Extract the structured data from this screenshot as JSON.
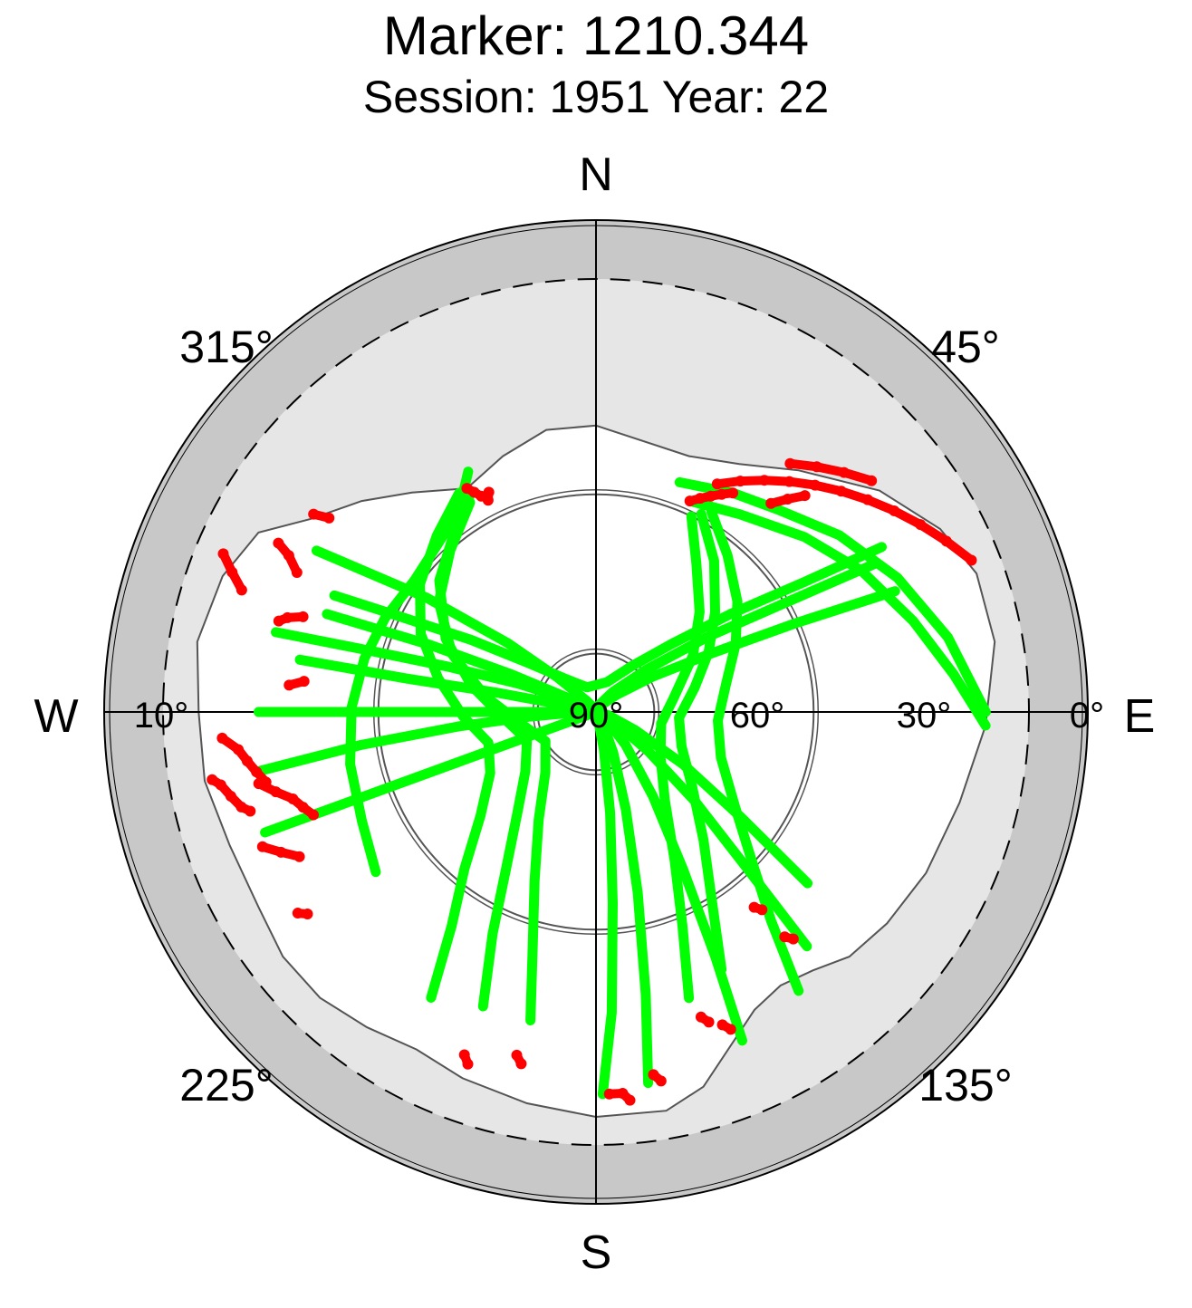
{
  "chart_data": {
    "type": "scatter",
    "title": "Marker: 1210.344",
    "subtitle": "Session: 1951 Year: 22",
    "projection": "polar skyplot",
    "compass": {
      "north": "N",
      "east": "E",
      "south": "S",
      "west": "W"
    },
    "azimuth_labels": [
      {
        "azimuth": 45,
        "text": "45°"
      },
      {
        "azimuth": 135,
        "text": "135°"
      },
      {
        "azimuth": 225,
        "text": "225°"
      },
      {
        "azimuth": 315,
        "text": "315°"
      }
    ],
    "elevation_labels": [
      {
        "elevation": 90,
        "text": "90°"
      },
      {
        "elevation": 60,
        "text": "60°"
      },
      {
        "elevation": 30,
        "text": "30°"
      },
      {
        "elevation": 10,
        "text": "10°"
      },
      {
        "elevation": 0,
        "text": "0°"
      }
    ],
    "legend": "none",
    "colors": {
      "observed": "#00ff00",
      "flagged": "#ff0000",
      "mask_outer": "#c8c8c8",
      "mask_inner": "#e6e6e6"
    },
    "series": [
      {
        "color": "#00ff00",
        "tracks": [
          [
            [
              22,
              332
            ],
            [
              26,
              326
            ],
            [
              28,
              317
            ],
            [
              29,
              306
            ],
            [
              28,
              294
            ],
            [
              27,
              283
            ],
            [
              26,
              271
            ],
            [
              25,
              258
            ],
            [
              24,
              245
            ],
            [
              22,
              234
            ]
          ],
          [
            [
              15,
              300
            ],
            [
              32,
              304
            ],
            [
              48,
              308
            ],
            [
              62,
              312
            ],
            [
              75,
              320
            ],
            [
              84,
              345
            ],
            [
              80,
              30
            ],
            [
              70,
              50
            ],
            [
              58,
              58
            ],
            [
              45,
              63
            ],
            [
              30,
              66
            ],
            [
              15,
              68
            ]
          ],
          [
            [
              20,
              290
            ],
            [
              36,
              292
            ],
            [
              52,
              294
            ],
            [
              66,
              296
            ],
            [
              78,
              304
            ],
            [
              86,
              330
            ],
            [
              85,
              80
            ],
            [
              76,
              105
            ],
            [
              64,
              115
            ],
            [
              50,
              121
            ],
            [
              36,
              126
            ],
            [
              22,
              129
            ]
          ],
          [
            [
              18,
              280
            ],
            [
              34,
              280
            ],
            [
              50,
              281
            ],
            [
              66,
              282
            ],
            [
              80,
              288
            ],
            [
              88,
              320
            ],
            [
              84,
              100
            ],
            [
              72,
              118
            ],
            [
              58,
              127
            ],
            [
              44,
              132
            ],
            [
              30,
              136
            ],
            [
              16,
              138
            ]
          ],
          [
            [
              13,
              270
            ],
            [
              28,
              270
            ],
            [
              45,
              270
            ],
            [
              62,
              270
            ],
            [
              78,
              272
            ],
            [
              89,
              330
            ],
            [
              78,
              120
            ],
            [
              64,
              138
            ],
            [
              50,
              146
            ],
            [
              36,
              151
            ],
            [
              22,
              154
            ],
            [
              10,
              156
            ]
          ],
          [
            [
              12,
              260
            ],
            [
              27,
              262
            ],
            [
              43,
              264
            ],
            [
              58,
              266
            ],
            [
              74,
              270
            ],
            [
              87,
              330
            ],
            [
              78,
              145
            ],
            [
              64,
              157
            ],
            [
              50,
              163
            ],
            [
              35,
              167
            ],
            [
              20,
              170
            ],
            [
              8,
              172
            ]
          ],
          [
            [
              11,
              250
            ],
            [
              25,
              250
            ],
            [
              40,
              250
            ],
            [
              55,
              250
            ],
            [
              70,
              250
            ],
            [
              85,
              250
            ],
            [
              82,
              160
            ],
            [
              66,
              168
            ],
            [
              50,
              172
            ],
            [
              34,
              175
            ],
            [
              18,
              177
            ],
            [
              7,
              179
            ]
          ],
          [
            [
              26,
              329
            ],
            [
              30,
              318
            ],
            [
              34,
              305
            ],
            [
              40,
              292
            ],
            [
              48,
              278
            ],
            [
              56,
              260
            ],
            [
              60,
              240
            ],
            [
              55,
              220
            ],
            [
              46,
              208
            ],
            [
              36,
              200
            ],
            [
              26,
              195
            ],
            [
              16,
              192
            ]
          ],
          [
            [
              25,
              330
            ],
            [
              29,
              320
            ],
            [
              32,
              310
            ],
            [
              38,
              296
            ],
            [
              45,
              282
            ],
            [
              52,
              266
            ],
            [
              56,
              248
            ],
            [
              52,
              230
            ],
            [
              45,
              218
            ],
            [
              36,
              210
            ],
            [
              26,
              205
            ],
            [
              16,
              201
            ]
          ],
          [
            [
              24,
              328
            ],
            [
              27,
              318
            ],
            [
              30,
              306
            ],
            [
              34,
              294
            ],
            [
              39,
              282
            ],
            [
              44,
              268
            ],
            [
              48,
              254
            ],
            [
              46,
              240
            ],
            [
              40,
              228
            ],
            [
              32,
              220
            ],
            [
              24,
              214
            ],
            [
              14,
              210
            ]
          ],
          [
            [
              30,
              26
            ],
            [
              36,
              34
            ],
            [
              42,
              46
            ],
            [
              48,
              60
            ],
            [
              55,
              80
            ],
            [
              58,
              100
            ],
            [
              55,
              125
            ],
            [
              48,
              142
            ],
            [
              38,
              152
            ],
            [
              28,
              158
            ],
            [
              18,
              162
            ]
          ],
          [
            [
              29,
              28
            ],
            [
              34,
              38
            ],
            [
              40,
              50
            ],
            [
              45,
              62
            ],
            [
              50,
              76
            ],
            [
              54,
              94
            ],
            [
              52,
              112
            ],
            [
              46,
              128
            ],
            [
              38,
              140
            ],
            [
              30,
              148
            ],
            [
              20,
              154
            ]
          ],
          [
            [
              28,
              30
            ],
            [
              32,
              40
            ],
            [
              36,
              52
            ],
            [
              40,
              64
            ],
            [
              44,
              78
            ],
            [
              46,
              94
            ],
            [
              44,
              110
            ],
            [
              38,
              124
            ],
            [
              30,
              134
            ],
            [
              22,
              140
            ],
            [
              12,
              144
            ]
          ],
          [
            [
              28,
              24
            ],
            [
              26,
              36
            ],
            [
              22,
              50
            ],
            [
              18,
              62
            ],
            [
              14,
              74
            ],
            [
              10,
              84
            ],
            [
              6,
              92
            ]
          ],
          [
            [
              26,
              20
            ],
            [
              24,
              32
            ],
            [
              22,
              42
            ],
            [
              18,
              54
            ],
            [
              14,
              66
            ],
            [
              10,
              78
            ],
            [
              6,
              90
            ]
          ],
          [
            [
              20,
              294
            ],
            [
              30,
              296
            ],
            [
              42,
              300
            ],
            [
              54,
              306
            ],
            [
              64,
              318
            ],
            [
              70,
              340
            ],
            [
              68,
              20
            ],
            [
              60,
              38
            ],
            [
              50,
              48
            ],
            [
              38,
              54
            ],
            [
              26,
              58
            ],
            [
              14,
              60
            ]
          ],
          [
            [
              14,
              284
            ],
            [
              26,
              285
            ],
            [
              40,
              287
            ],
            [
              54,
              290
            ],
            [
              68,
              294
            ],
            [
              80,
              305
            ],
            [
              84,
              340
            ],
            [
              80,
              20
            ],
            [
              70,
              40
            ],
            [
              58,
              50
            ],
            [
              44,
              56
            ],
            [
              30,
              60
            ],
            [
              16,
              62
            ]
          ]
        ]
      },
      {
        "color": "#ff0000",
        "tracks": [
          [
            [
              4,
              293
            ],
            [
              6,
              291
            ],
            [
              8,
              289
            ]
          ],
          [
            [
              10,
              298
            ],
            [
              12,
              297
            ],
            [
              14,
              295
            ]
          ],
          [
            [
              14,
              286
            ],
            [
              15,
              287
            ],
            [
              17,
              288
            ]
          ],
          [
            [
              12,
              305
            ],
            [
              14,
              306
            ]
          ],
          [
            [
              8,
              266
            ],
            [
              10,
              264
            ],
            [
              11,
              262
            ],
            [
              12,
              260
            ],
            [
              13,
              258
            ]
          ],
          [
            [
              6,
              260
            ],
            [
              7,
              259
            ],
            [
              8,
              257
            ],
            [
              9,
              255
            ],
            [
              10,
              254
            ]
          ],
          [
            [
              12,
              258
            ],
            [
              14,
              256
            ],
            [
              16,
              254
            ],
            [
              17,
              252
            ],
            [
              18,
              250
            ]
          ],
          [
            [
              10,
              248
            ],
            [
              12,
              246
            ],
            [
              14,
              244
            ]
          ],
          [
            [
              17,
              275
            ],
            [
              19,
              276
            ]
          ],
          [
            [
              10,
              236
            ],
            [
              11,
              235
            ]
          ],
          [
            [
              24,
              330
            ],
            [
              25,
              331
            ],
            [
              26,
              332
            ]
          ],
          [
            [
              26,
              334
            ],
            [
              27,
              333
            ]
          ],
          [
            [
              24,
              28
            ],
            [
              22,
              32
            ],
            [
              20,
              36
            ],
            [
              18,
              40
            ],
            [
              16,
              44
            ],
            [
              14,
              48
            ],
            [
              12,
              52
            ],
            [
              10,
              56
            ],
            [
              8,
              60
            ],
            [
              6,
              64
            ],
            [
              4,
              68
            ]
          ],
          [
            [
              28,
              24
            ],
            [
              27,
              26
            ],
            [
              26,
              28
            ],
            [
              25,
              30
            ],
            [
              24,
              32
            ]
          ],
          [
            [
              22,
              40
            ],
            [
              20,
              42
            ],
            [
              18,
              44
            ]
          ],
          [
            [
              16,
              38
            ],
            [
              14,
              42
            ],
            [
              12,
              46
            ],
            [
              10,
              50
            ]
          ],
          [
            [
              8,
              170
            ],
            [
              9,
              171
            ]
          ],
          [
            [
              6,
              175
            ],
            [
              7,
              176
            ],
            [
              7,
              178
            ]
          ],
          [
            [
              12,
              157
            ],
            [
              13,
              158
            ]
          ],
          [
            [
              10,
              192
            ],
            [
              11,
              193
            ]
          ],
          [
            [
              8,
              200
            ],
            [
              9,
              201
            ]
          ],
          [
            [
              18,
              139
            ],
            [
              19,
              140
            ]
          ],
          [
            [
              24,
              140
            ],
            [
              25,
              141
            ]
          ],
          [
            [
              14,
              160
            ],
            [
              15,
              161
            ]
          ]
        ]
      }
    ]
  }
}
